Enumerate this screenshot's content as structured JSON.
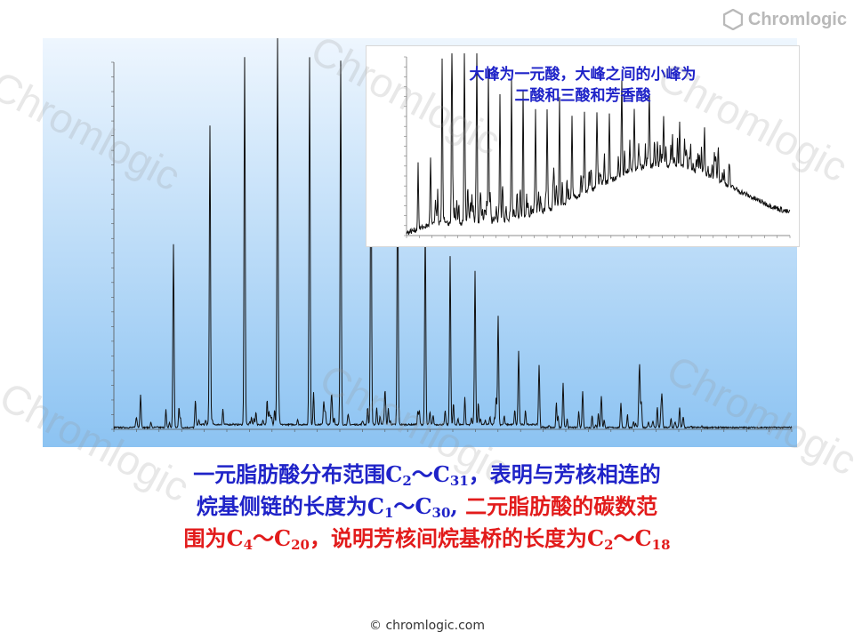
{
  "brand": {
    "logo_text": "Chromlogic",
    "watermark": "Chromlogic"
  },
  "inset": {
    "title_line1": "大峰为一元酸，大峰之间的小峰为",
    "title_line2": "二酸和三酸和芳香酸"
  },
  "caption": {
    "line1_prefix": "一元脂肪酸分布范围C",
    "line1_sub1": "2",
    "line1_mid": "～C",
    "line1_sub2": "31",
    "line1_suffix": "，表明与芳核相连的",
    "line2_prefix": "烷基侧链的长度为C",
    "line2_sub1": "1",
    "line2_mid": "～C",
    "line2_sub2": "30",
    "line2_sep": ",",
    "line2_red": "二元脂肪酸的碳数范",
    "line3_prefix": "围为C",
    "line3_sub1": "4",
    "line3_mid": "～C",
    "line3_sub2": "20",
    "line3_sep": "，说明芳核间烷基桥的长度为C",
    "line3_sub3": "2",
    "line3_mid2": "～C",
    "line3_sub4": "18"
  },
  "footer": {
    "copyright": "© chromlogic.com"
  },
  "colors": {
    "accent_blue": "#1f23c8",
    "accent_red": "#e21b1b",
    "panel_top": "#e9f3fd",
    "panel_bottom": "#8cc3f2"
  }
}
